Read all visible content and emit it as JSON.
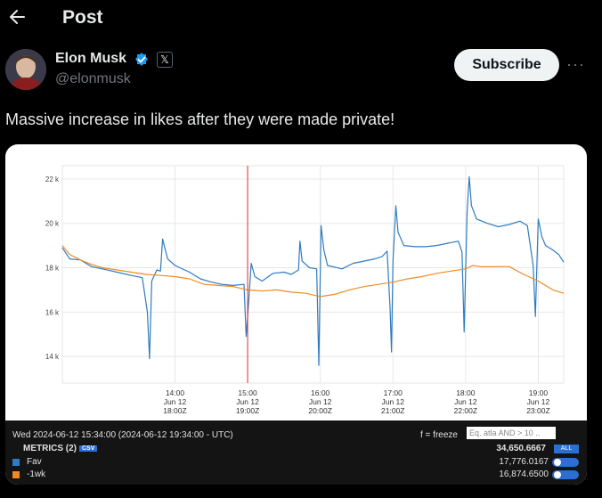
{
  "header": {
    "back_icon": "arrow-left-icon",
    "title": "Post"
  },
  "author": {
    "name": "Elon Musk",
    "handle": "@elonmusk",
    "verified_icon": "verified-badge-icon",
    "affiliation_icon": "x-logo-icon"
  },
  "actions": {
    "subscribe_label": "Subscribe",
    "more_icon": "more-horizontal-icon"
  },
  "post": {
    "text": "Massive increase in likes after they were made private!"
  },
  "legend": {
    "timestamp": "Wed 2024-06-12 15:34:00 (2024-06-12 19:34:00 - UTC)",
    "freeze_label": "f = freeze",
    "search_placeholder": "Eq. atla AND > 10 ..",
    "metrics_label": "METRICS (2)",
    "csv_label": "CSV",
    "total": "34,650.6667",
    "all_label": "ALL",
    "series": [
      {
        "name": "Fav",
        "value": "17,776.0167",
        "color": "#2f7bbf"
      },
      {
        "name": "-1wk",
        "value": "16,874.6500",
        "color": "#f08a24"
      }
    ]
  },
  "chart_data": {
    "type": "line",
    "title": "",
    "xlabel": "",
    "ylabel": "",
    "ylim": [
      12800,
      22600
    ],
    "y_ticks": [
      14000,
      16000,
      18000,
      20000,
      22000
    ],
    "y_tick_labels": [
      "14 k",
      "16 k",
      "18 k",
      "20 k",
      "22 k"
    ],
    "x_range_hours": [
      12.45,
      19.35
    ],
    "x_tick_hours": [
      14,
      15,
      16,
      17,
      18,
      19
    ],
    "x_tick_labels": [
      [
        "14:00",
        "Jun 12",
        "18:00Z"
      ],
      [
        "15:00",
        "Jun 12",
        "19:00Z"
      ],
      [
        "16:00",
        "Jun 12",
        "20:00Z"
      ],
      [
        "17:00",
        "Jun 12",
        "21:00Z"
      ],
      [
        "18:00",
        "Jun 12",
        "22:00Z"
      ],
      [
        "19:00",
        "Jun 12",
        "23:00Z"
      ]
    ],
    "cursor_hour": 15.0,
    "grid": true,
    "series": [
      {
        "name": "Fav",
        "color": "#2f7bbf",
        "points": [
          [
            12.45,
            18900
          ],
          [
            12.55,
            18400
          ],
          [
            12.7,
            18350
          ],
          [
            12.85,
            18050
          ],
          [
            13.0,
            17950
          ],
          [
            13.2,
            17800
          ],
          [
            13.4,
            17650
          ],
          [
            13.55,
            17550
          ],
          [
            13.62,
            16000
          ],
          [
            13.65,
            13900
          ],
          [
            13.68,
            17400
          ],
          [
            13.75,
            17900
          ],
          [
            13.8,
            17850
          ],
          [
            13.83,
            19300
          ],
          [
            13.86,
            18900
          ],
          [
            13.9,
            18400
          ],
          [
            14.0,
            18100
          ],
          [
            14.2,
            17800
          ],
          [
            14.35,
            17500
          ],
          [
            14.5,
            17350
          ],
          [
            14.65,
            17250
          ],
          [
            14.8,
            17200
          ],
          [
            14.95,
            17250
          ],
          [
            14.98,
            14900
          ],
          [
            15.0,
            15800
          ],
          [
            15.05,
            18200
          ],
          [
            15.1,
            17600
          ],
          [
            15.2,
            17400
          ],
          [
            15.35,
            17750
          ],
          [
            15.5,
            17800
          ],
          [
            15.6,
            17700
          ],
          [
            15.7,
            17900
          ],
          [
            15.72,
            19200
          ],
          [
            15.75,
            18300
          ],
          [
            15.85,
            18000
          ],
          [
            15.95,
            17950
          ],
          [
            15.98,
            13600
          ],
          [
            16.01,
            19900
          ],
          [
            16.05,
            18800
          ],
          [
            16.1,
            18100
          ],
          [
            16.3,
            17950
          ],
          [
            16.45,
            18200
          ],
          [
            16.6,
            18300
          ],
          [
            16.75,
            18400
          ],
          [
            16.85,
            18500
          ],
          [
            16.92,
            18750
          ],
          [
            16.96,
            16200
          ],
          [
            16.98,
            14200
          ],
          [
            17.0,
            18300
          ],
          [
            17.04,
            20800
          ],
          [
            17.07,
            19600
          ],
          [
            17.15,
            19000
          ],
          [
            17.3,
            18950
          ],
          [
            17.45,
            18950
          ],
          [
            17.6,
            19000
          ],
          [
            17.75,
            19100
          ],
          [
            17.9,
            19200
          ],
          [
            17.95,
            18700
          ],
          [
            17.98,
            15100
          ],
          [
            18.02,
            20500
          ],
          [
            18.05,
            22100
          ],
          [
            18.08,
            20800
          ],
          [
            18.15,
            20200
          ],
          [
            18.3,
            20000
          ],
          [
            18.45,
            19850
          ],
          [
            18.6,
            19950
          ],
          [
            18.75,
            20100
          ],
          [
            18.85,
            19900
          ],
          [
            18.93,
            18100
          ],
          [
            18.96,
            15800
          ],
          [
            19.0,
            20200
          ],
          [
            19.05,
            19400
          ],
          [
            19.1,
            19000
          ],
          [
            19.2,
            18800
          ],
          [
            19.28,
            18600
          ],
          [
            19.35,
            18250
          ]
        ]
      },
      {
        "name": "-1wk",
        "color": "#f08a24",
        "points": [
          [
            12.45,
            19000
          ],
          [
            12.55,
            18600
          ],
          [
            12.7,
            18350
          ],
          [
            12.85,
            18150
          ],
          [
            13.0,
            18000
          ],
          [
            13.2,
            17900
          ],
          [
            13.4,
            17800
          ],
          [
            13.6,
            17700
          ],
          [
            13.8,
            17650
          ],
          [
            14.0,
            17600
          ],
          [
            14.2,
            17500
          ],
          [
            14.4,
            17250
          ],
          [
            14.6,
            17200
          ],
          [
            14.8,
            17150
          ],
          [
            15.0,
            17000
          ],
          [
            15.2,
            16950
          ],
          [
            15.4,
            17000
          ],
          [
            15.6,
            16900
          ],
          [
            15.8,
            16850
          ],
          [
            16.0,
            16700
          ],
          [
            16.2,
            16800
          ],
          [
            16.4,
            17000
          ],
          [
            16.6,
            17150
          ],
          [
            16.8,
            17250
          ],
          [
            17.0,
            17350
          ],
          [
            17.2,
            17500
          ],
          [
            17.4,
            17600
          ],
          [
            17.6,
            17750
          ],
          [
            17.8,
            17850
          ],
          [
            18.0,
            17950
          ],
          [
            18.1,
            18100
          ],
          [
            18.2,
            18050
          ],
          [
            18.4,
            18050
          ],
          [
            18.6,
            18050
          ],
          [
            18.8,
            17700
          ],
          [
            19.0,
            17400
          ],
          [
            19.2,
            17000
          ],
          [
            19.35,
            16850
          ]
        ]
      }
    ]
  }
}
